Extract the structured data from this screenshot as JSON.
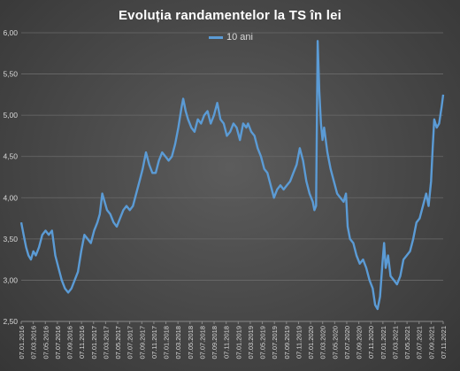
{
  "chart_data": {
    "type": "line",
    "title": "Evoluția randamentelor la TS în lei",
    "xlabel": "",
    "ylabel": "",
    "ylim": [
      2.5,
      6.0
    ],
    "yticks": [
      "2,50",
      "3,00",
      "3,50",
      "4,00",
      "4,50",
      "5,00",
      "5,50",
      "6,00"
    ],
    "grid": "horizontal",
    "legend_position": "top-center",
    "line_color": "#5b9bd5",
    "xticks": [
      "07.01.2016",
      "07.03.2016",
      "07.05.2016",
      "07.07.2016",
      "07.09.2016",
      "07.11.2016",
      "07.01.2017",
      "07.03.2017",
      "07.05.2017",
      "07.07.2017",
      "07.09.2017",
      "07.11.2017",
      "07.01.2018",
      "07.03.2018",
      "07.05.2018",
      "07.07.2018",
      "07.09.2018",
      "07.11.2018",
      "07.01.2019",
      "07.03.2019",
      "07.05.2019",
      "07.07.2019",
      "07.09.2019",
      "07.11.2019",
      "07.01.2020",
      "07.03.2020",
      "07.05.2020",
      "07.07.2020",
      "07.09.2020",
      "07.11.2020",
      "07.01.2021",
      "07.03.2021",
      "07.05.2021",
      "07.07.2021",
      "07.09.2021",
      "07.11.2021"
    ],
    "series": [
      {
        "name": "10 ani",
        "points": [
          [
            0,
            3.7
          ],
          [
            0.3,
            3.55
          ],
          [
            0.6,
            3.4
          ],
          [
            0.9,
            3.3
          ],
          [
            1.2,
            3.25
          ],
          [
            1.5,
            3.35
          ],
          [
            1.8,
            3.3
          ],
          [
            2.2,
            3.4
          ],
          [
            2.6,
            3.55
          ],
          [
            3.0,
            3.6
          ],
          [
            3.4,
            3.55
          ],
          [
            3.8,
            3.6
          ],
          [
            4.2,
            3.3
          ],
          [
            4.6,
            3.15
          ],
          [
            5.0,
            3.0
          ],
          [
            5.4,
            2.9
          ],
          [
            5.8,
            2.85
          ],
          [
            6.2,
            2.9
          ],
          [
            6.6,
            3.0
          ],
          [
            7.0,
            3.1
          ],
          [
            7.4,
            3.35
          ],
          [
            7.8,
            3.55
          ],
          [
            8.2,
            3.5
          ],
          [
            8.6,
            3.45
          ],
          [
            9.0,
            3.6
          ],
          [
            9.4,
            3.7
          ],
          [
            9.7,
            3.8
          ],
          [
            10.0,
            4.05
          ],
          [
            10.3,
            3.95
          ],
          [
            10.6,
            3.85
          ],
          [
            11.0,
            3.8
          ],
          [
            11.4,
            3.7
          ],
          [
            11.8,
            3.65
          ],
          [
            12.2,
            3.75
          ],
          [
            12.6,
            3.85
          ],
          [
            13.0,
            3.9
          ],
          [
            13.4,
            3.85
          ],
          [
            13.8,
            3.9
          ],
          [
            14.2,
            4.05
          ],
          [
            14.6,
            4.2
          ],
          [
            15.0,
            4.35
          ],
          [
            15.4,
            4.55
          ],
          [
            15.8,
            4.4
          ],
          [
            16.2,
            4.3
          ],
          [
            16.6,
            4.3
          ],
          [
            17.0,
            4.45
          ],
          [
            17.4,
            4.55
          ],
          [
            17.8,
            4.5
          ],
          [
            18.2,
            4.45
          ],
          [
            18.6,
            4.5
          ],
          [
            19.0,
            4.65
          ],
          [
            19.4,
            4.85
          ],
          [
            19.8,
            5.1
          ],
          [
            20.0,
            5.2
          ],
          [
            20.3,
            5.05
          ],
          [
            20.6,
            4.95
          ],
          [
            21.0,
            4.85
          ],
          [
            21.4,
            4.8
          ],
          [
            21.8,
            4.95
          ],
          [
            22.2,
            4.9
          ],
          [
            22.6,
            5.0
          ],
          [
            23.0,
            5.05
          ],
          [
            23.4,
            4.9
          ],
          [
            23.8,
            5.0
          ],
          [
            24.2,
            5.15
          ],
          [
            24.6,
            4.95
          ],
          [
            25.0,
            4.9
          ],
          [
            25.4,
            4.75
          ],
          [
            25.8,
            4.8
          ],
          [
            26.2,
            4.9
          ],
          [
            26.6,
            4.85
          ],
          [
            27.0,
            4.7
          ],
          [
            27.4,
            4.9
          ],
          [
            27.8,
            4.85
          ],
          [
            28.0,
            4.9
          ],
          [
            28.4,
            4.8
          ],
          [
            28.8,
            4.75
          ],
          [
            29.2,
            4.6
          ],
          [
            29.6,
            4.5
          ],
          [
            30.0,
            4.35
          ],
          [
            30.4,
            4.3
          ],
          [
            30.8,
            4.15
          ],
          [
            31.2,
            4.0
          ],
          [
            31.6,
            4.1
          ],
          [
            32.0,
            4.15
          ],
          [
            32.4,
            4.1
          ],
          [
            32.8,
            4.15
          ],
          [
            33.2,
            4.2
          ],
          [
            33.6,
            4.3
          ],
          [
            34.0,
            4.4
          ],
          [
            34.4,
            4.6
          ],
          [
            34.8,
            4.45
          ],
          [
            35.2,
            4.2
          ],
          [
            35.6,
            4.05
          ],
          [
            36.0,
            3.95
          ],
          [
            36.2,
            3.85
          ],
          [
            36.4,
            3.9
          ],
          [
            36.6,
            5.9
          ],
          [
            36.8,
            5.3
          ],
          [
            37.0,
            4.9
          ],
          [
            37.2,
            4.7
          ],
          [
            37.4,
            4.85
          ],
          [
            37.8,
            4.55
          ],
          [
            38.2,
            4.35
          ],
          [
            38.6,
            4.2
          ],
          [
            39.0,
            4.05
          ],
          [
            39.4,
            4.0
          ],
          [
            39.8,
            3.95
          ],
          [
            40.1,
            4.05
          ],
          [
            40.3,
            3.65
          ],
          [
            40.6,
            3.5
          ],
          [
            41.0,
            3.45
          ],
          [
            41.4,
            3.3
          ],
          [
            41.8,
            3.2
          ],
          [
            42.2,
            3.25
          ],
          [
            42.6,
            3.15
          ],
          [
            43.0,
            3.0
          ],
          [
            43.4,
            2.9
          ],
          [
            43.7,
            2.7
          ],
          [
            44.0,
            2.65
          ],
          [
            44.3,
            2.8
          ],
          [
            44.6,
            3.2
          ],
          [
            44.8,
            3.45
          ],
          [
            45.0,
            3.15
          ],
          [
            45.3,
            3.3
          ],
          [
            45.6,
            3.05
          ],
          [
            46.0,
            3.0
          ],
          [
            46.4,
            2.95
          ],
          [
            46.8,
            3.05
          ],
          [
            47.2,
            3.25
          ],
          [
            47.6,
            3.3
          ],
          [
            48.0,
            3.35
          ],
          [
            48.4,
            3.5
          ],
          [
            48.8,
            3.7
          ],
          [
            49.2,
            3.75
          ],
          [
            49.6,
            3.9
          ],
          [
            50.0,
            4.05
          ],
          [
            50.3,
            3.9
          ],
          [
            50.6,
            4.2
          ],
          [
            50.8,
            4.6
          ],
          [
            51.0,
            4.95
          ],
          [
            51.3,
            4.85
          ],
          [
            51.6,
            4.9
          ],
          [
            51.9,
            5.1
          ],
          [
            52.1,
            5.25
          ]
        ]
      }
    ]
  }
}
